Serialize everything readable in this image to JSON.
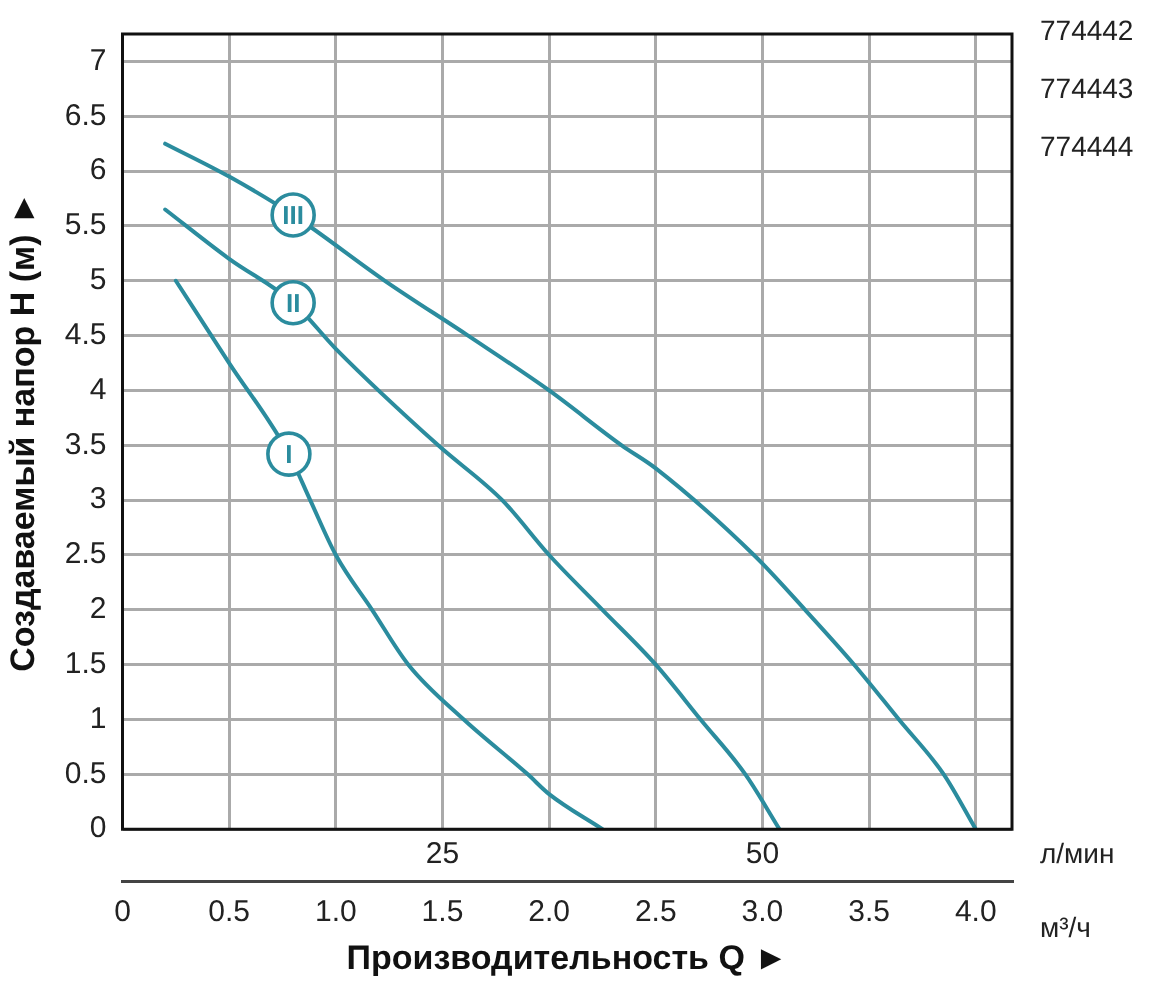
{
  "chart_data": {
    "type": "line",
    "xlabel": "Производительность Q ►",
    "ylabel": "Создаваемый напор H (м) ►",
    "x2label": "л/мин",
    "xlim": [
      0,
      4.17
    ],
    "xticks": [
      0,
      0.5,
      {
        "value": 1,
        "label": "1.0"
      },
      1.5,
      {
        "value": 2,
        "label": "2.0"
      },
      2.5,
      {
        "value": 3,
        "label": "3.0"
      },
      3.5,
      {
        "value": 4,
        "label": "4.0"
      }
    ],
    "x2lim": [
      0,
      69.5
    ],
    "x2ticks": [
      25,
      50
    ],
    "ylim": [
      0,
      7.25
    ],
    "yticks": [
      0,
      0.5,
      1,
      1.5,
      2,
      2.5,
      3,
      3.5,
      4,
      4.5,
      5,
      5.5,
      6,
      6.5,
      7
    ],
    "grid": true,
    "legend": false,
    "series": [
      {
        "name": "III",
        "color": "#2b8c9e",
        "x": [
          0.2,
          0.5,
          0.8,
          1.23,
          1.62,
          2.0,
          2.34,
          2.5,
          2.96,
          3.2,
          3.43,
          3.64,
          3.85,
          4.0
        ],
        "values": [
          6.25,
          5.95,
          5.6,
          5.0,
          4.5,
          4.0,
          3.5,
          3.29,
          2.5,
          2.0,
          1.5,
          1.0,
          0.5,
          0
        ]
      },
      {
        "name": "II",
        "color": "#2b8c9e",
        "x": [
          0.2,
          0.5,
          0.8,
          1.0,
          1.48,
          1.78,
          2.0,
          2.25,
          2.5,
          2.71,
          2.92,
          3.08
        ],
        "values": [
          5.65,
          5.2,
          4.8,
          4.38,
          3.5,
          3.0,
          2.5,
          2.0,
          1.5,
          1.0,
          0.5,
          0
        ]
      },
      {
        "name": "I",
        "color": "#2b8c9e",
        "x": [
          0.25,
          0.5,
          0.78,
          0.88,
          1.0,
          1.17,
          1.34,
          1.6,
          1.9,
          2.0,
          2.25
        ],
        "values": [
          5.0,
          4.25,
          3.42,
          3.0,
          2.5,
          2.0,
          1.5,
          1.0,
          0.5,
          0.32,
          0
        ]
      }
    ],
    "annotations": [
      "774442",
      "774443",
      "774444",
      "м³/ч"
    ]
  }
}
